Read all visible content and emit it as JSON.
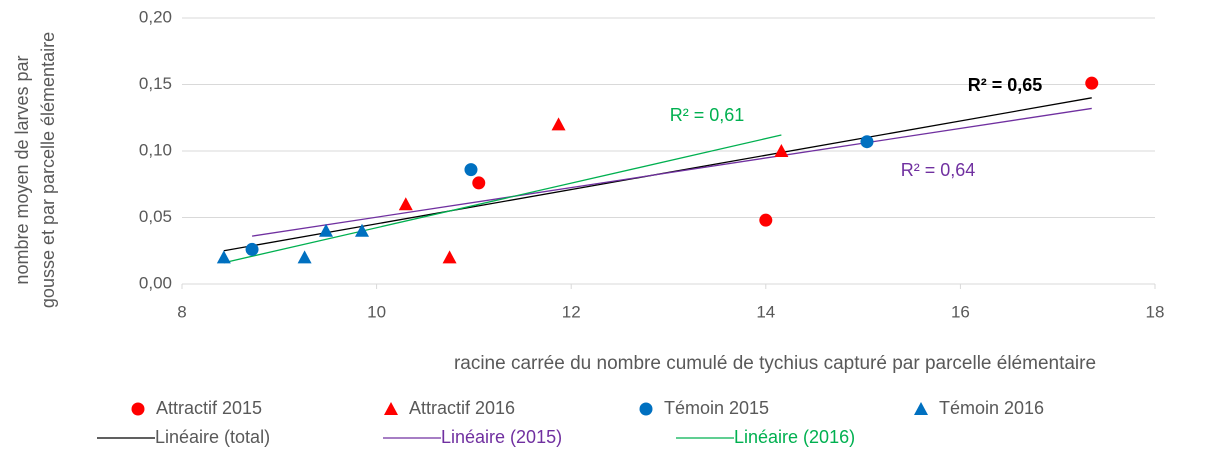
{
  "chart_data": {
    "type": "scatter",
    "xlabel": "racine carrée du nombre cumulé de tychius capturé par parcelle élémentaire",
    "ylabel": [
      "nombre moyen de larves par",
      "gousse et par parcelle élémentaire"
    ],
    "xlim": [
      8,
      18
    ],
    "xticks": [
      8,
      10,
      12,
      14,
      16,
      18
    ],
    "ylim": [
      0,
      0.2
    ],
    "yticks": [
      {
        "value": 0,
        "label": "0,00"
      },
      {
        "value": 0.05,
        "label": "0,05"
      },
      {
        "value": 0.1,
        "label": "0,10"
      },
      {
        "value": 0.15,
        "label": "0,15"
      },
      {
        "value": 0.2,
        "label": "0,20"
      }
    ],
    "grid": true,
    "series": [
      {
        "name": "Attractif 2015",
        "color": "#ff0000",
        "marker": "circle",
        "x": [
          11.05,
          14.0,
          17.35
        ],
        "values": [
          0.076,
          0.048,
          0.151
        ]
      },
      {
        "name": "Attractif 2016",
        "color": "#ff0000",
        "marker": "triangle",
        "x": [
          10.3,
          10.75,
          11.87,
          14.16
        ],
        "values": [
          0.06,
          0.02,
          0.12,
          0.1
        ]
      },
      {
        "name": "Témoin 2015",
        "color": "#0070c0",
        "marker": "circle",
        "x": [
          8.72,
          10.97,
          15.04
        ],
        "values": [
          0.026,
          0.086,
          0.107
        ]
      },
      {
        "name": "Témoin 2016",
        "color": "#0070c0",
        "marker": "triangle",
        "x": [
          8.43,
          9.26,
          9.48,
          9.85
        ],
        "values": [
          0.02,
          0.02,
          0.04,
          0.04
        ]
      },
      {
        "name": "Linéaire (total)",
        "color": "#000000",
        "marker": "line",
        "x": [
          8.43,
          17.35
        ],
        "values": [
          0.025,
          0.14
        ]
      },
      {
        "name": "Linéaire (2015)",
        "color": "#7030a0",
        "marker": "line",
        "x": [
          8.72,
          17.35
        ],
        "values": [
          0.036,
          0.132
        ]
      },
      {
        "name": "Linéaire (2016)",
        "color": "#00b050",
        "marker": "line",
        "x": [
          8.43,
          14.16
        ],
        "values": [
          0.016,
          0.112
        ]
      }
    ],
    "annotations": [
      {
        "text": "R² = 0,65",
        "color": "#000000",
        "bold": true
      },
      {
        "text": "R² = 0,61",
        "color": "#00b050",
        "bold": false
      },
      {
        "text": "R² = 0,64",
        "color": "#7030a0",
        "bold": false
      }
    ]
  }
}
